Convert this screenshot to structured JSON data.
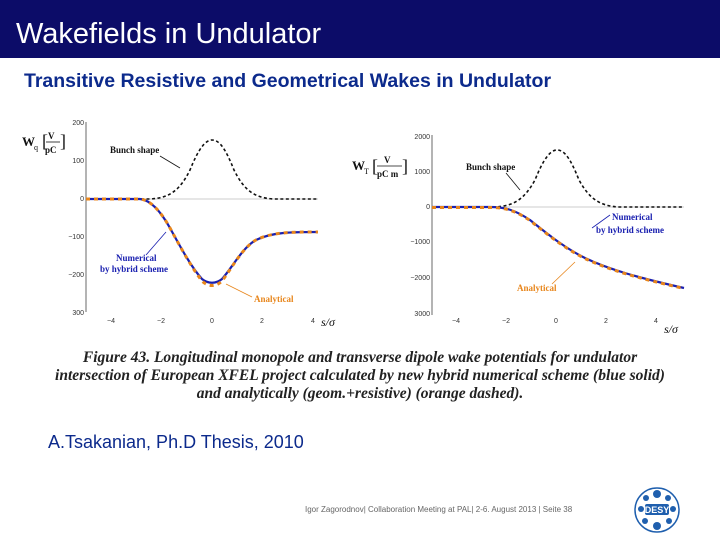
{
  "header": {
    "title": "Wakefields in Undulator"
  },
  "subtitle": "Transitive Resistive and Geometrical Wakes in Undulator",
  "figure": {
    "caption_label": "Figure 43.",
    "caption_l1": "Longitudinal monopole and transverse dipole wake potentials for undulator",
    "caption_l2": "intersection of European XFEL project calculated by new hybrid numerical scheme (blue solid)",
    "caption_l3": "and analytically (geom.+resistive) (orange dashed).",
    "left_plot": {
      "ylabel_symbol": "W",
      "ylabel_sub": "q",
      "unit_num": "V",
      "unit_den": "pC",
      "yticks": [
        "200",
        "100",
        "0",
        "−100",
        "−200",
        "300"
      ],
      "xticks": [
        "−4",
        "−2",
        "0",
        "2",
        "4"
      ],
      "xlabel": "s/σ",
      "ann_bunch": "Bunch shape",
      "ann_numerical": "Numerical\nby hybrid scheme",
      "ann_analytical": "Analytical"
    },
    "right_plot": {
      "ylabel_symbol": "W",
      "ylabel_sub": "T",
      "unit_num": "V",
      "unit_den": "pC m",
      "yticks": [
        "2000",
        "1000",
        "0",
        "−1000",
        "−2000",
        "3000"
      ],
      "xticks": [
        "−4",
        "−2",
        "0",
        "2",
        "4"
      ],
      "xlabel": "s/σ",
      "ann_bunch": "Bunch shape",
      "ann_numerical": "Numerical\nby hybrid scheme",
      "ann_analytical": "Analytical"
    }
  },
  "reference": "A.Tsakanian, Ph.D Thesis, 2010",
  "footer": {
    "text": "Igor Zagorodnov| Collaboration Meeting at PAL| 2-6. August 2013 | Seite 38"
  },
  "logo": {
    "text": "DESY"
  },
  "colors": {
    "title_bar": "#0c0c68",
    "accent_text": "#0c2a8c",
    "numerical": "#1a20b0",
    "analytical": "#e8861c",
    "logo": "#1f5fae"
  }
}
